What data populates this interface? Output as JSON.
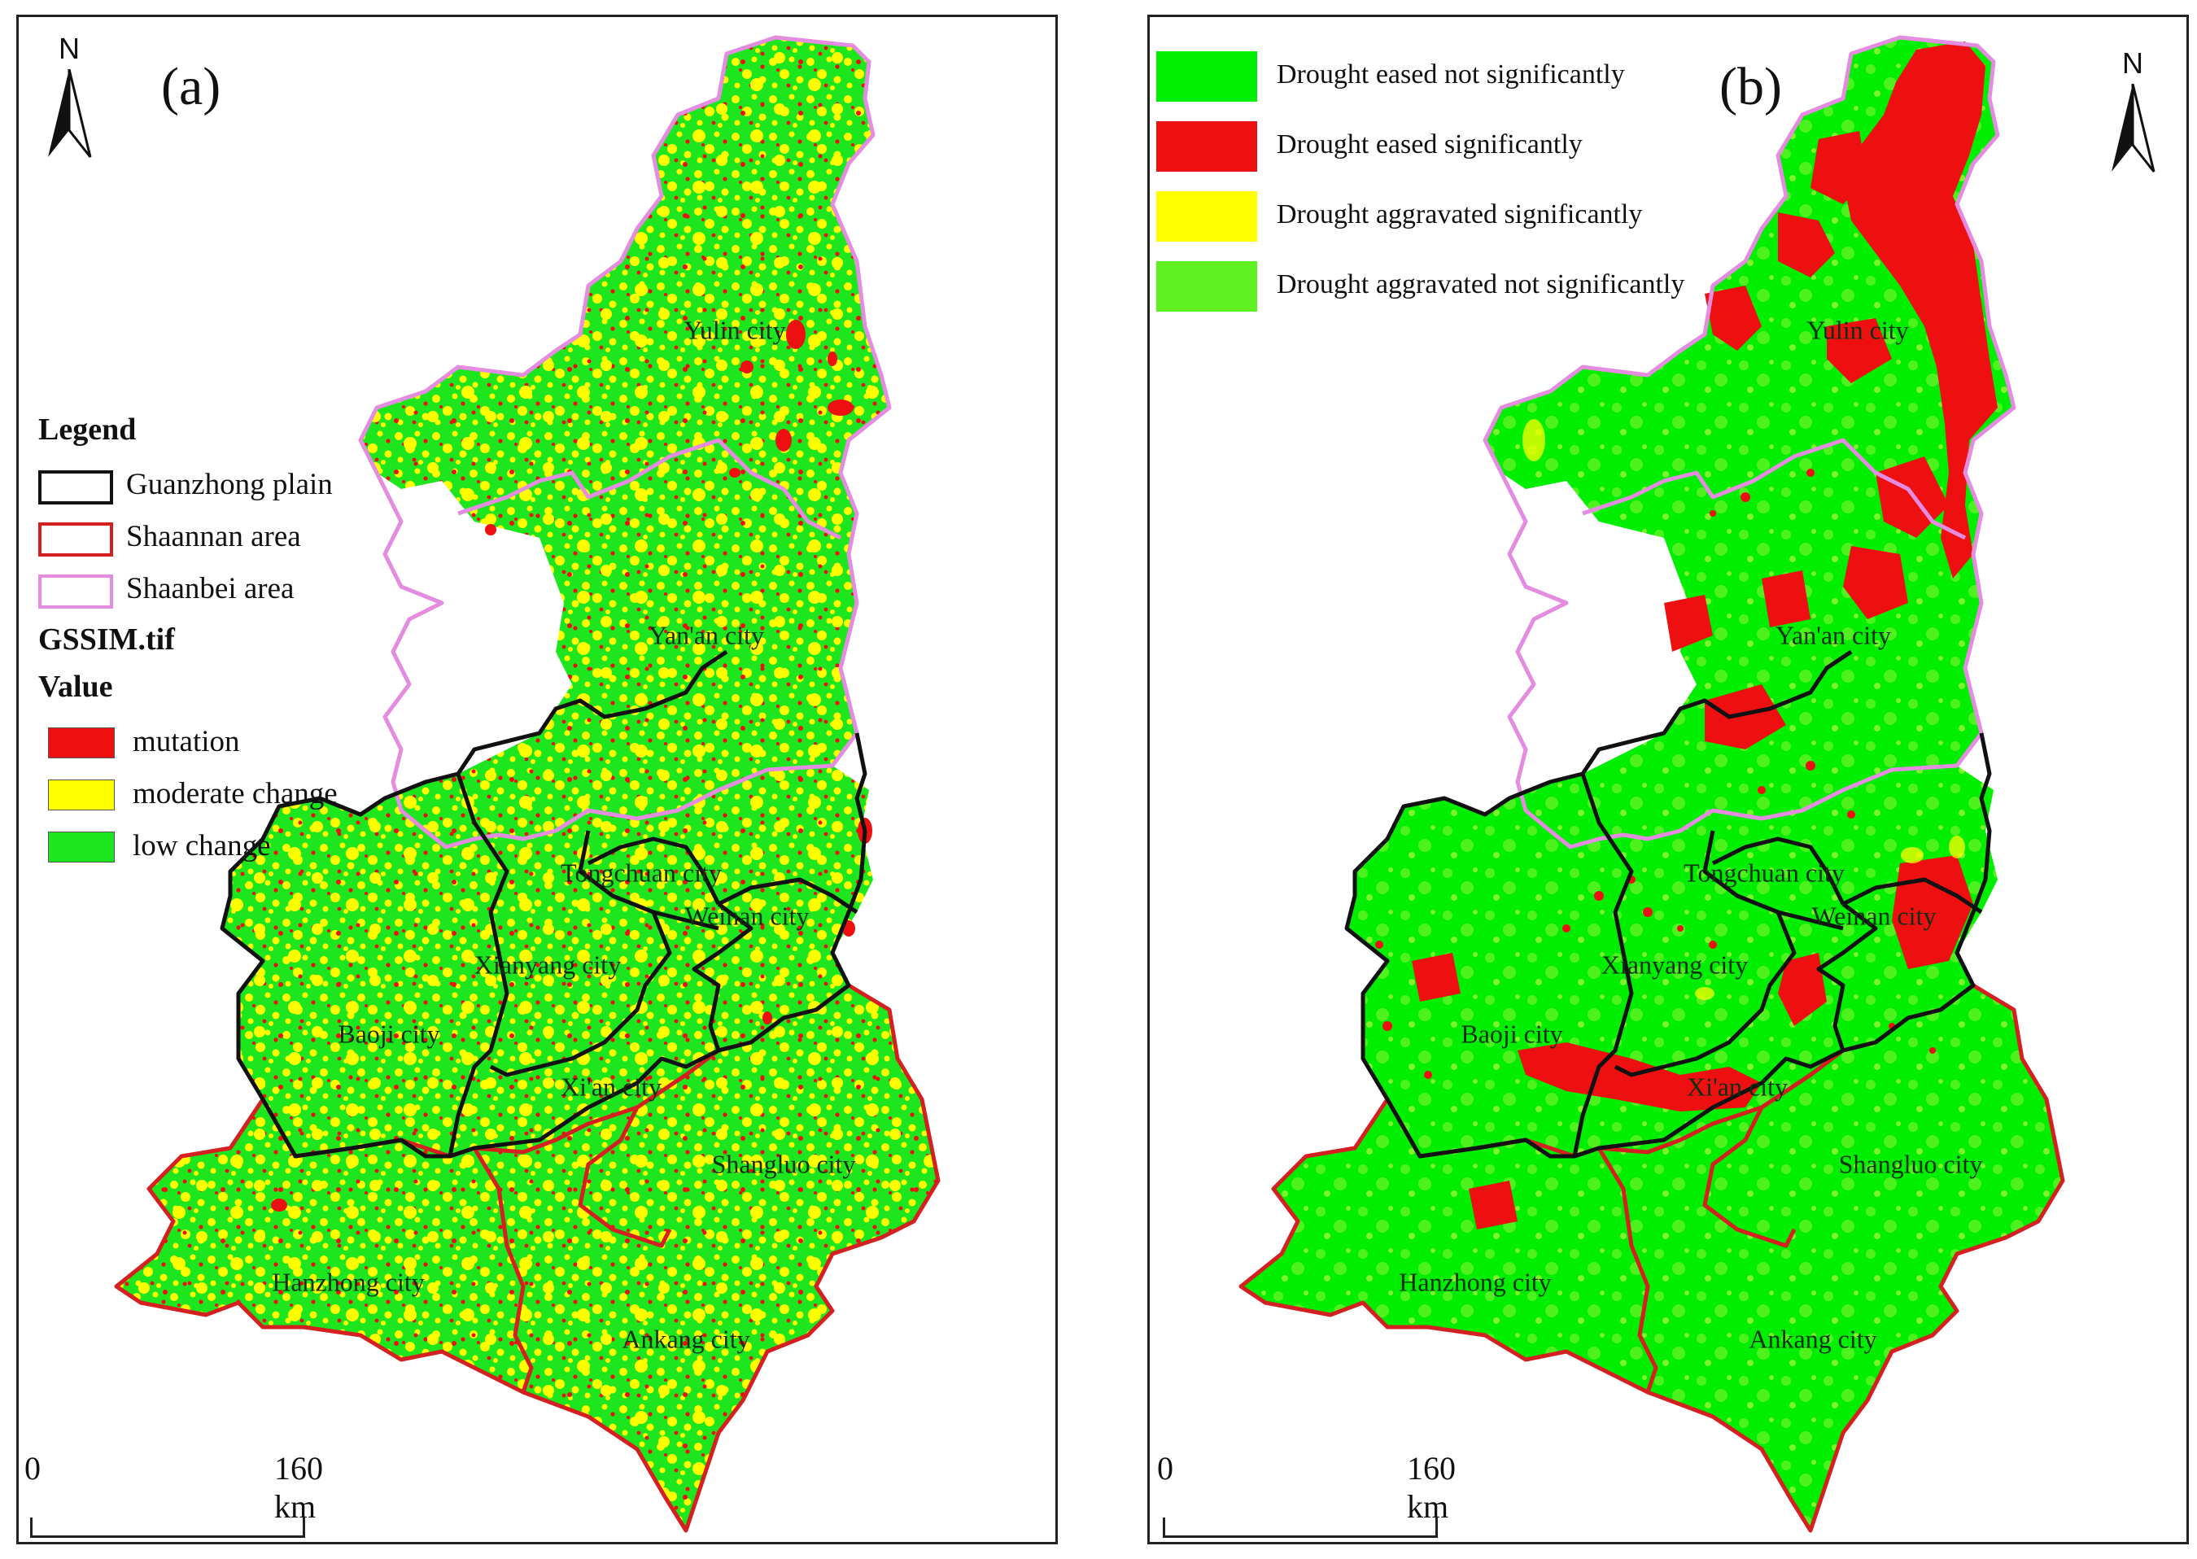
{
  "panel_a": {
    "label": "(a)",
    "north_label": "N",
    "legend": {
      "title": "Legend",
      "boundaries": [
        {
          "label": "Guanzhong plain",
          "color": "#111111"
        },
        {
          "label": "Shaannan area",
          "color": "#d42020"
        },
        {
          "label": "Shaanbei area",
          "color": "#e48ce0"
        }
      ],
      "raster_name": "GSSIM.tif",
      "value_title": "Value",
      "values": [
        {
          "label": "mutation",
          "color": "#ee1010"
        },
        {
          "label": "moderate change",
          "color": "#ffff00"
        },
        {
          "label": "low change",
          "color": "#1ee61e"
        }
      ]
    },
    "scale": {
      "start": "0",
      "end": "160 km"
    }
  },
  "panel_b": {
    "label": "(b)",
    "north_label": "N",
    "legend": [
      {
        "label": "Drought eased not significantly",
        "color": "#00f000"
      },
      {
        "label": "Drought eased  significantly",
        "color": "#ee1010"
      },
      {
        "label": "Drought aggravated significantly",
        "color": "#ffff00"
      },
      {
        "label": "Drought aggravated not significantly",
        "color": "#5ef020"
      }
    ],
    "scale": {
      "start": "0",
      "end": "160 km"
    }
  },
  "cities": {
    "yulin": "Yulin city",
    "yanan": "Yan'an city",
    "tongchuan": "Tongchuan city",
    "weinan": "Weinan city",
    "xianyang": "Xianyang city",
    "baoji": "Baoji city",
    "xian": "Xi'an city",
    "shangluo": "Shangluo city",
    "hanzhong": "Hanzhong city",
    "ankang": "Ankang city"
  }
}
